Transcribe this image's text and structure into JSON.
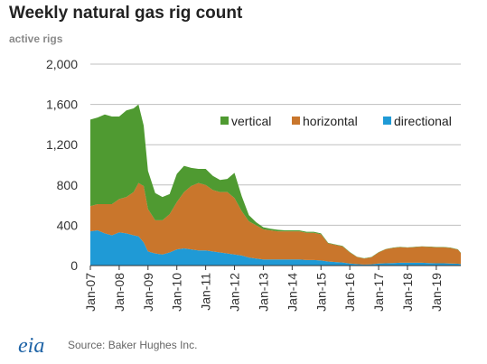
{
  "header": {
    "title": "Weekly natural gas rig count",
    "subtitle": "active rigs"
  },
  "footer": {
    "logo": "eia",
    "source": "Source: Baker Hughes Inc."
  },
  "colors": {
    "vertical": "#4f9a31",
    "horizontal": "#c9762c",
    "directional": "#1f9ad6",
    "grid": "#bfbfbf",
    "axis": "#333333",
    "logo": "#1e63a6"
  },
  "chart_data": {
    "type": "area",
    "stacked": true,
    "ylim": [
      0,
      2000
    ],
    "yticks": [
      0,
      400,
      800,
      1200,
      1600,
      2000
    ],
    "ytick_labels": [
      "0",
      "400",
      "800",
      "1,200",
      "1,600",
      "2,000"
    ],
    "xticks": [
      2007,
      2008,
      2009,
      2010,
      2011,
      2012,
      2013,
      2014,
      2015,
      2016,
      2017,
      2018,
      2019
    ],
    "xtick_labels": [
      "Jan-07",
      "Jan-08",
      "Jan-09",
      "Jan-10",
      "Jan-11",
      "Jan-12",
      "Jan-13",
      "Jan-14",
      "Jan-15",
      "Jan-16",
      "Jan-17",
      "Jan-18",
      "Jan-19"
    ],
    "xlim": [
      2007.0,
      2019.85
    ],
    "grid": true,
    "legend_position": "top-right",
    "x": [
      2007.0,
      2007.25,
      2007.5,
      2007.75,
      2008.0,
      2008.25,
      2008.5,
      2008.67,
      2008.85,
      2009.0,
      2009.25,
      2009.5,
      2009.75,
      2010.0,
      2010.25,
      2010.5,
      2010.75,
      2011.0,
      2011.25,
      2011.5,
      2011.75,
      2012.0,
      2012.25,
      2012.5,
      2012.75,
      2013.0,
      2013.25,
      2013.5,
      2013.75,
      2014.0,
      2014.25,
      2014.5,
      2014.75,
      2015.0,
      2015.25,
      2015.5,
      2015.75,
      2016.0,
      2016.25,
      2016.5,
      2016.75,
      2017.0,
      2017.25,
      2017.5,
      2017.75,
      2018.0,
      2018.25,
      2018.5,
      2018.75,
      2019.0,
      2019.25,
      2019.5,
      2019.75,
      2019.85
    ],
    "series": [
      {
        "name": "directional",
        "values": [
          340,
          350,
          320,
          300,
          330,
          320,
          300,
          290,
          230,
          140,
          120,
          110,
          130,
          160,
          170,
          160,
          150,
          150,
          140,
          130,
          120,
          110,
          100,
          80,
          70,
          60,
          60,
          60,
          60,
          60,
          60,
          55,
          55,
          50,
          40,
          35,
          30,
          20,
          15,
          10,
          12,
          20,
          22,
          25,
          28,
          28,
          28,
          28,
          25,
          22,
          22,
          20,
          18,
          15
        ]
      },
      {
        "name": "horizontal",
        "values": [
          250,
          260,
          290,
          310,
          330,
          360,
          430,
          530,
          560,
          420,
          330,
          340,
          380,
          470,
          560,
          630,
          670,
          650,
          610,
          600,
          610,
          560,
          440,
          360,
          330,
          300,
          290,
          280,
          280,
          280,
          280,
          270,
          270,
          260,
          180,
          170,
          160,
          110,
          70,
          60,
          70,
          110,
          140,
          150,
          155,
          150,
          155,
          160,
          160,
          160,
          160,
          155,
          140,
          110
        ]
      },
      {
        "name": "vertical",
        "values": [
          860,
          860,
          890,
          870,
          820,
          860,
          830,
          780,
          600,
          380,
          270,
          230,
          200,
          280,
          260,
          180,
          140,
          160,
          140,
          120,
          130,
          250,
          150,
          60,
          30,
          20,
          15,
          15,
          10,
          10,
          10,
          10,
          10,
          10,
          5,
          5,
          5,
          5,
          3,
          3,
          3,
          3,
          3,
          3,
          3,
          3,
          3,
          3,
          3,
          3,
          3,
          3,
          3,
          3
        ]
      }
    ]
  }
}
